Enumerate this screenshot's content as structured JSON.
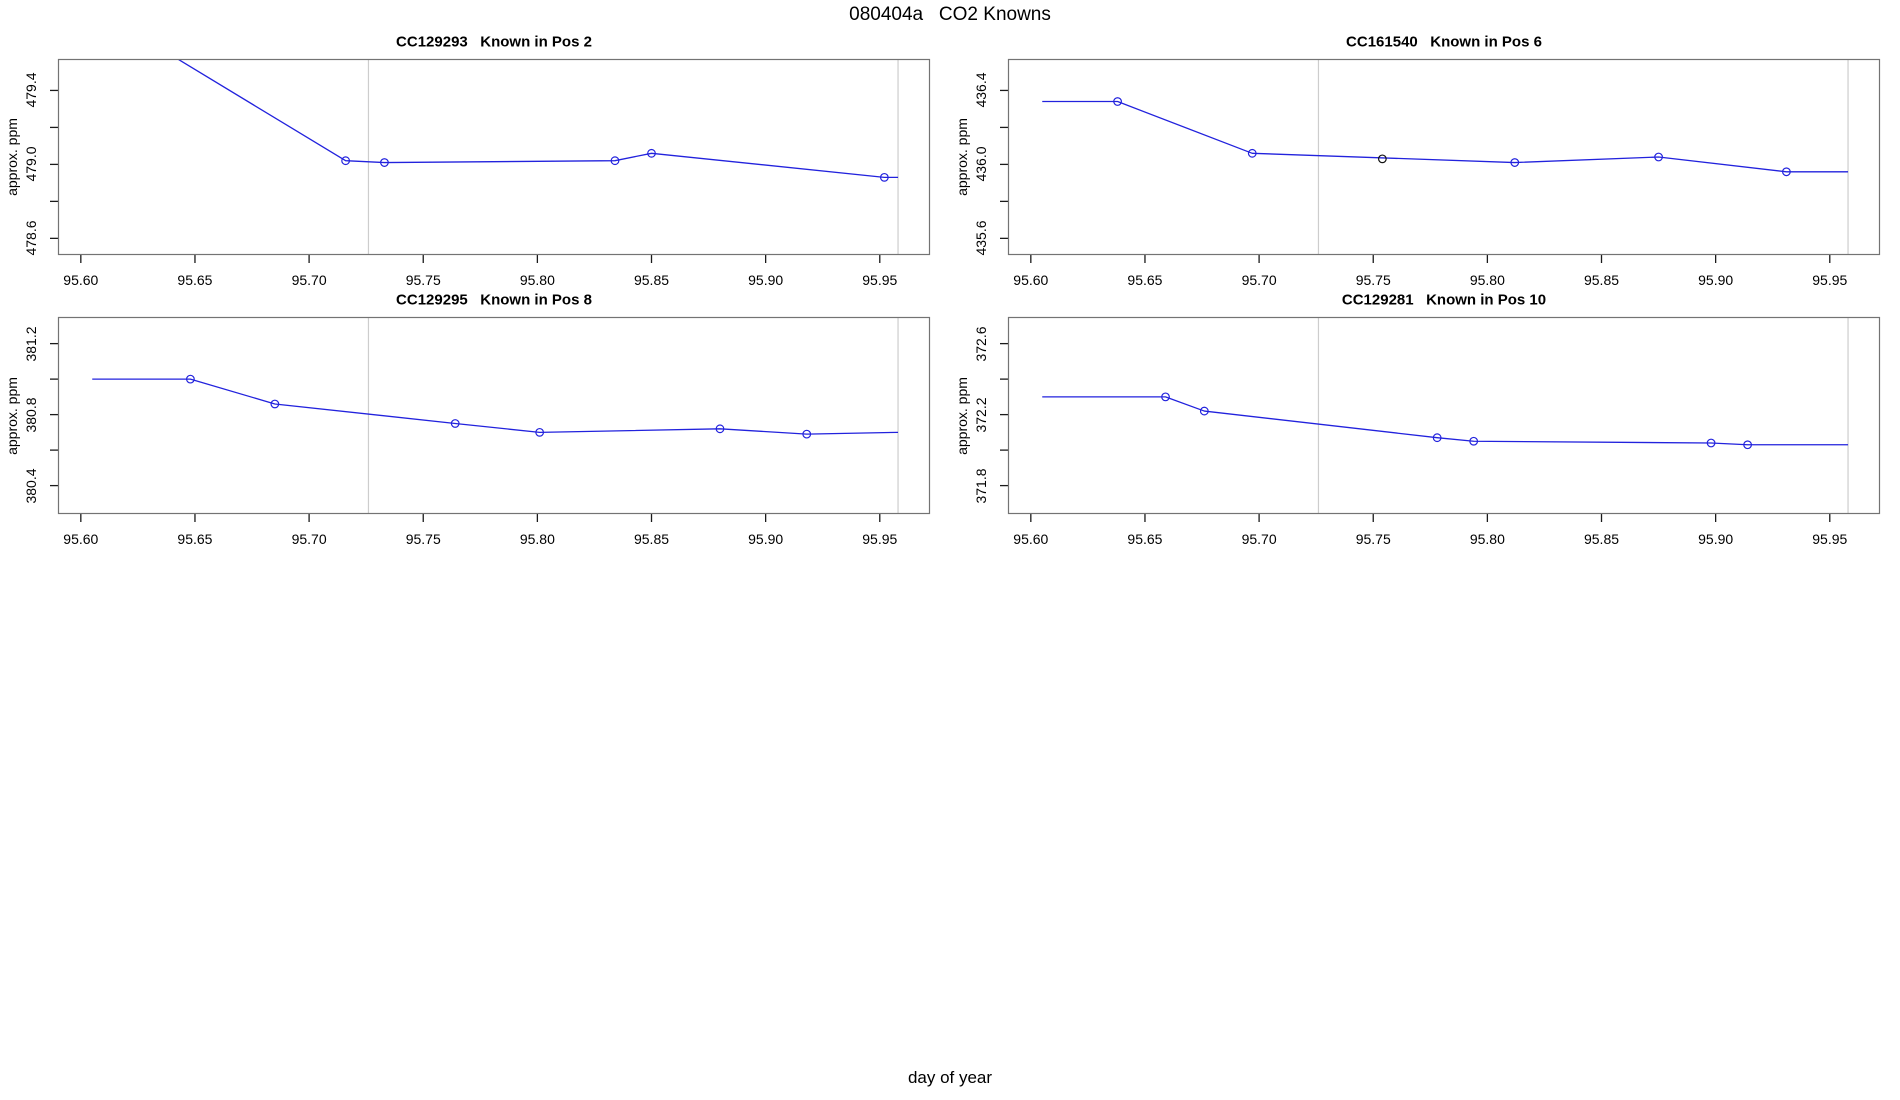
{
  "figure": {
    "title": "080404a   CO2 Knowns",
    "xlabel": "day of year"
  },
  "colors": {
    "line": "#2222dd",
    "marker": "#2222dd",
    "flagged_marker": "#111111",
    "vline": "#cdcdcd",
    "box": "#737373",
    "tick": "#1a1a1a",
    "text": "#000000"
  },
  "chart_data": [
    {
      "type": "line",
      "title": "CC129293   Known in Pos 2",
      "ylabel": "approx. ppm",
      "xlim": [
        95.59,
        95.972
      ],
      "ylim": [
        478.51,
        479.57
      ],
      "x_ticks": [
        95.6,
        95.65,
        95.7,
        95.75,
        95.8,
        95.85,
        95.9,
        95.95
      ],
      "y_ticks": [
        478.6,
        478.8,
        479.0,
        479.2,
        479.4
      ],
      "y_ticks_labeled": [
        478.6,
        479.0,
        479.4
      ],
      "grid": false,
      "legend": null,
      "vlines": [
        95.726,
        95.958
      ],
      "series": [
        {
          "name": "known-pos-2",
          "points": [
            [
              95.605,
              479.85
            ],
            [
              95.716,
              479.02
            ],
            [
              95.733,
              479.01
            ],
            [
              95.834,
              479.02
            ],
            [
              95.85,
              479.06
            ],
            [
              95.952,
              478.93
            ],
            [
              95.958,
              478.93
            ]
          ],
          "marker_points": [
            [
              95.716,
              479.02
            ],
            [
              95.733,
              479.01
            ],
            [
              95.834,
              479.02
            ],
            [
              95.85,
              479.06
            ],
            [
              95.952,
              478.93
            ]
          ]
        }
      ],
      "flagged_points": []
    },
    {
      "type": "line",
      "title": "CC161540   Known in Pos 6",
      "ylabel": "approx. ppm",
      "xlim": [
        95.59,
        95.972
      ],
      "ylim": [
        435.51,
        436.57
      ],
      "x_ticks": [
        95.6,
        95.65,
        95.7,
        95.75,
        95.8,
        95.85,
        95.9,
        95.95
      ],
      "y_ticks": [
        435.6,
        435.8,
        436.0,
        436.2,
        436.4
      ],
      "y_ticks_labeled": [
        435.6,
        436.0,
        436.4
      ],
      "grid": false,
      "legend": null,
      "vlines": [
        95.726,
        95.958
      ],
      "series": [
        {
          "name": "known-pos-6",
          "points": [
            [
              95.605,
              436.34
            ],
            [
              95.638,
              436.34
            ],
            [
              95.697,
              436.06
            ],
            [
              95.812,
              436.01
            ],
            [
              95.875,
              436.04
            ],
            [
              95.931,
              435.96
            ],
            [
              95.958,
              435.96
            ]
          ],
          "marker_points": [
            [
              95.638,
              436.34
            ],
            [
              95.697,
              436.06
            ],
            [
              95.812,
              436.01
            ],
            [
              95.875,
              436.04
            ],
            [
              95.931,
              435.96
            ]
          ]
        }
      ],
      "flagged_points": [
        [
          95.754,
          436.03
        ]
      ]
    },
    {
      "type": "line",
      "title": "CC129295   Known in Pos 8",
      "ylabel": "approx. ppm",
      "xlim": [
        95.59,
        95.972
      ],
      "ylim": [
        380.24,
        381.35
      ],
      "x_ticks": [
        95.6,
        95.65,
        95.7,
        95.75,
        95.8,
        95.85,
        95.9,
        95.95
      ],
      "y_ticks": [
        380.4,
        380.6,
        380.8,
        381.0,
        381.2
      ],
      "y_ticks_labeled": [
        380.4,
        380.8,
        381.2
      ],
      "grid": false,
      "legend": null,
      "vlines": [
        95.726,
        95.958
      ],
      "series": [
        {
          "name": "known-pos-8",
          "points": [
            [
              95.605,
              381.0
            ],
            [
              95.648,
              381.0
            ],
            [
              95.685,
              380.86
            ],
            [
              95.764,
              380.75
            ],
            [
              95.801,
              380.7
            ],
            [
              95.88,
              380.72
            ],
            [
              95.918,
              380.69
            ],
            [
              95.958,
              380.7
            ]
          ],
          "marker_points": [
            [
              95.648,
              381.0
            ],
            [
              95.685,
              380.86
            ],
            [
              95.764,
              380.75
            ],
            [
              95.801,
              380.7
            ],
            [
              95.88,
              380.72
            ],
            [
              95.918,
              380.69
            ]
          ]
        }
      ],
      "flagged_points": []
    },
    {
      "type": "line",
      "title": "CC129281   Known in Pos 10",
      "ylabel": "approx. ppm",
      "xlim": [
        95.59,
        95.972
      ],
      "ylim": [
        371.64,
        372.75
      ],
      "x_ticks": [
        95.6,
        95.65,
        95.7,
        95.75,
        95.8,
        95.85,
        95.9,
        95.95
      ],
      "y_ticks": [
        371.8,
        372.0,
        372.2,
        372.4,
        372.6
      ],
      "y_ticks_labeled": [
        371.8,
        372.2,
        372.6
      ],
      "grid": false,
      "legend": null,
      "vlines": [
        95.726,
        95.958
      ],
      "series": [
        {
          "name": "known-pos-10",
          "points": [
            [
              95.605,
              372.3
            ],
            [
              95.659,
              372.3
            ],
            [
              95.676,
              372.22
            ],
            [
              95.778,
              372.07
            ],
            [
              95.794,
              372.05
            ],
            [
              95.898,
              372.04
            ],
            [
              95.914,
              372.03
            ],
            [
              95.958,
              372.03
            ]
          ],
          "marker_points": [
            [
              95.659,
              372.3
            ],
            [
              95.676,
              372.22
            ],
            [
              95.778,
              372.07
            ],
            [
              95.794,
              372.05
            ],
            [
              95.898,
              372.04
            ],
            [
              95.914,
              372.03
            ]
          ]
        }
      ],
      "flagged_points": []
    }
  ]
}
